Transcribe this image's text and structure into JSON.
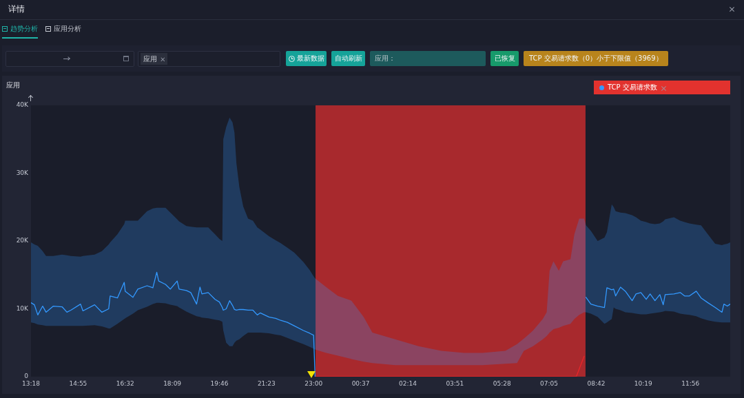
{
  "chart_data": {
    "type": "line",
    "title": "详情",
    "subtitle": "应用",
    "annotations": [
      "趋势分析",
      "应用分析",
      "应用",
      "最新数据",
      "自动刷新",
      "应用：",
      "已恢复",
      "TCP 交易请求数（0）小于下限值（3969）"
    ],
    "xlim": [
      "2000-01-01T13:18",
      "2000-01-02T13:18"
    ],
    "xticks": [
      {
        "value": "2000-01-01T13:18",
        "label": "13:18"
      },
      {
        "value": "2000-01-01T14:55",
        "label": "14:55"
      },
      {
        "value": "2000-01-01T16:32",
        "label": "16:32"
      },
      {
        "value": "2000-01-01T18:09",
        "label": "18:09"
      },
      {
        "value": "2000-01-01T19:46",
        "label": "19:46"
      },
      {
        "value": "2000-01-01T21:23",
        "label": "21:23"
      },
      {
        "value": "2000-01-01T23:00",
        "label": "23:00"
      },
      {
        "value": "2000-01-02T00:37",
        "label": "00:37"
      },
      {
        "value": "2000-01-02T02:14",
        "label": "02:14"
      },
      {
        "value": "2000-01-02T03:51",
        "label": "03:51"
      },
      {
        "value": "2000-01-02T05:28",
        "label": "05:28"
      },
      {
        "value": "2000-01-02T07:05",
        "label": "07:05"
      },
      {
        "value": "2000-01-02T08:42",
        "label": "08:42"
      },
      {
        "value": "2000-01-02T10:19",
        "label": "10:19"
      },
      {
        "value": "2000-01-02T11:56",
        "label": "11:56"
      }
    ],
    "ylim": [
      0,
      40000
    ],
    "yticks": [
      0,
      {
        "value": 10000,
        "label": "10K"
      },
      {
        "value": 20000,
        "label": "20K"
      },
      {
        "value": 30000,
        "label": "30K"
      },
      {
        "value": 40000,
        "label": "40K"
      }
    ],
    "legend": "top right",
    "marker": "none",
    "bands": [
      {
        "axis": "x",
        "from": "2000-01-01T23:04",
        "to": "2000-01-02T08:20",
        "color": "#a8292d"
      }
    ],
    "series": [
      {
        "name": "TCP 交易请求数",
        "color": "#3399ff",
        "x": [
          "2000-01-01T13:18",
          "2000-01-01T13:25",
          "2000-01-01T13:32",
          "2000-01-01T13:42",
          "2000-01-01T13:49",
          "2000-01-01T14:04",
          "2000-01-01T14:22",
          "2000-01-01T14:32",
          "2000-01-01T14:40",
          "2000-01-01T15:00",
          "2000-01-01T15:05",
          "2000-01-01T15:29",
          "2000-01-01T15:44",
          "2000-01-01T15:58",
          "2000-01-01T16:01",
          "2000-01-01T16:16",
          "2000-01-01T16:30",
          "2000-01-01T16:32",
          "2000-01-01T16:48",
          "2000-01-01T16:58",
          "2000-01-01T17:17",
          "2000-01-01T17:29",
          "2000-01-01T17:37",
          "2000-01-01T17:41",
          "2000-01-01T17:55",
          "2000-01-01T18:05",
          "2000-01-01T18:19",
          "2000-01-01T18:23",
          "2000-01-01T18:38",
          "2000-01-01T18:47",
          "2000-01-01T18:59",
          "2000-01-01T19:06",
          "2000-01-01T19:10",
          "2000-01-01T19:23",
          "2000-01-01T19:37",
          "2000-01-01T19:46",
          "2000-01-01T19:52",
          "2000-01-01T19:54",
          "2000-01-01T20:00",
          "2000-01-01T20:07",
          "2000-01-01T20:13",
          "2000-01-01T20:17",
          "2000-01-01T20:21",
          "2000-01-01T20:27",
          "2000-01-01T20:35",
          "2000-01-01T20:45",
          "2000-01-01T20:55",
          "2000-01-01T21:04",
          "2000-01-01T21:10",
          "2000-01-01T21:28",
          "2000-01-01T21:42",
          "2000-01-01T21:52",
          "2000-01-01T22:06",
          "2000-01-01T22:20",
          "2000-01-01T22:39",
          "2000-01-01T22:52",
          "2000-01-01T23:00",
          "2000-01-01T23:03",
          "2000-01-01T23:26",
          "2000-01-01T23:50",
          "2000-01-02T00:18",
          "2000-01-02T00:43",
          "2000-01-02T01:01",
          "2000-01-02T01:48",
          "2000-01-02T02:36",
          "2000-01-02T03:23",
          "2000-01-02T04:10",
          "2000-01-02T04:48",
          "2000-01-02T05:35",
          "2000-01-02T05:59",
          "2000-01-02T06:13",
          "2000-01-02T06:32",
          "2000-01-02T06:52",
          "2000-01-02T07:00",
          "2000-01-02T07:06",
          "2000-01-02T07:14",
          "2000-01-02T07:25",
          "2000-01-02T07:34",
          "2000-01-02T07:49",
          "2000-01-02T07:57",
          "2000-01-02T08:07",
          "2000-01-02T08:17",
          "2000-01-02T08:21",
          "2000-01-02T08:31",
          "2000-01-02T08:45",
          "2000-01-02T08:59",
          "2000-01-02T09:04",
          "2000-01-02T09:14",
          "2000-01-02T09:18",
          "2000-01-02T09:22",
          "2000-01-02T09:32",
          "2000-01-02T09:42",
          "2000-01-02T09:56",
          "2000-01-02T10:04",
          "2000-01-02T10:14",
          "2000-01-02T10:25",
          "2000-01-02T10:33",
          "2000-01-02T10:43",
          "2000-01-02T10:53",
          "2000-01-02T11:00",
          "2000-01-02T11:04",
          "2000-01-02T11:22",
          "2000-01-02T11:35",
          "2000-01-02T11:44",
          "2000-01-02T11:54",
          "2000-01-02T12:08",
          "2000-01-02T12:18",
          "2000-01-02T12:32",
          "2000-01-02T12:47",
          "2000-01-02T13:01",
          "2000-01-02T13:05",
          "2000-01-02T13:12",
          "2000-01-02T13:18"
        ],
        "values": [
          10900,
          10600,
          9100,
          10400,
          9500,
          10400,
          10300,
          9500,
          9800,
          10700,
          9700,
          10600,
          9500,
          10000,
          11900,
          11600,
          13900,
          12600,
          11700,
          12900,
          13400,
          13100,
          15400,
          14100,
          13600,
          12900,
          14100,
          12900,
          12700,
          12400,
          10700,
          13200,
          12200,
          12400,
          11400,
          11000,
          10200,
          9800,
          10000,
          11200,
          10500,
          9900,
          9800,
          9900,
          9900,
          9800,
          9800,
          9100,
          9400,
          8800,
          8600,
          8300,
          8000,
          7500,
          6800,
          6400,
          6100,
          0,
          null,
          null,
          null,
          null,
          null,
          null,
          null,
          null,
          null,
          null,
          null,
          null,
          null,
          null,
          null,
          null,
          null,
          null,
          null,
          null,
          null,
          null,
          null,
          null,
          11700,
          10700,
          10400,
          10200,
          13100,
          12800,
          12900,
          11900,
          13200,
          12600,
          11200,
          12200,
          12400,
          11400,
          12200,
          11200,
          12100,
          10600,
          12100,
          12200,
          12400,
          11900,
          11900,
          12600,
          11600,
          10900,
          10200,
          9500,
          10700,
          10400,
          10700
        ],
        "lower": [
          8000,
          7900,
          7700,
          7600,
          7500,
          7500,
          7500,
          7500,
          7500,
          7500,
          7500,
          7600,
          7400,
          7100,
          7100,
          7800,
          8500,
          8600,
          9300,
          9800,
          10300,
          10700,
          10900,
          10900,
          10800,
          10600,
          10400,
          10200,
          9600,
          9300,
          8900,
          8800,
          8700,
          8600,
          8400,
          8300,
          8100,
          6800,
          5000,
          4500,
          4500,
          5000,
          5300,
          5500,
          6000,
          6500,
          6500,
          6500,
          6500,
          6400,
          6200,
          6100,
          5700,
          5300,
          4800,
          4400,
          4100,
          4000,
          3500,
          3100,
          2600,
          2200,
          2000,
          1700,
          1700,
          1700,
          1700,
          1700,
          1900,
          2000,
          3800,
          4500,
          5500,
          6000,
          6500,
          7000,
          7200,
          7500,
          7800,
          8500,
          9100,
          9500,
          9500,
          9300,
          8800,
          7800,
          8000,
          8500,
          10200,
          10000,
          9800,
          9500,
          9400,
          9300,
          9200,
          9200,
          9300,
          9400,
          9500,
          9600,
          9700,
          9600,
          9300,
          9200,
          9100,
          8900,
          8600,
          8300,
          8100,
          8000,
          8000,
          8000,
          8000
        ],
        "upper": [
          19800,
          19500,
          19300,
          18500,
          17800,
          17800,
          18000,
          17900,
          17800,
          17700,
          17800,
          18000,
          18500,
          19500,
          19800,
          21000,
          22500,
          23000,
          23000,
          23000,
          24400,
          24800,
          24900,
          24900,
          24900,
          24200,
          23200,
          22900,
          22200,
          22100,
          22000,
          22000,
          22000,
          22000,
          21000,
          20300,
          20000,
          35000,
          36800,
          38200,
          37500,
          36000,
          31500,
          28000,
          25100,
          23300,
          23000,
          22000,
          21700,
          20700,
          20100,
          19700,
          19000,
          18300,
          16900,
          15700,
          14800,
          14500,
          13200,
          11900,
          11200,
          8800,
          6500,
          5500,
          4500,
          3800,
          3500,
          3500,
          3800,
          4800,
          5600,
          6800,
          8500,
          9500,
          15600,
          17000,
          15600,
          17000,
          17300,
          21000,
          23300,
          23300,
          22300,
          21500,
          20000,
          20500,
          21300,
          25400,
          25000,
          24400,
          24200,
          24100,
          23800,
          23500,
          23000,
          22800,
          22600,
          22500,
          22600,
          22900,
          23200,
          23500,
          23000,
          22800,
          22600,
          22400,
          22300,
          21000,
          19600,
          19400,
          19500,
          19600,
          19800
        ]
      },
      {
        "color": "#e8262a",
        "x": [
          "2000-01-01T23:03",
          "2000-01-02T08:01",
          "2000-01-02T08:17"
        ],
        "values": [
          0,
          0,
          3000
        ]
      }
    ]
  }
}
